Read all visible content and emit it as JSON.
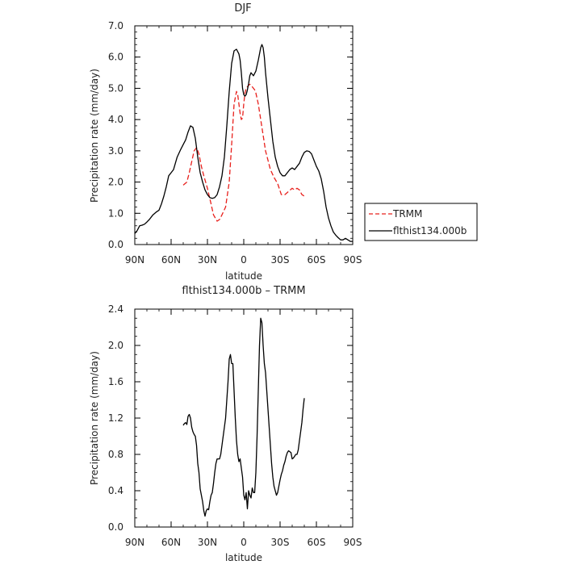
{
  "chart_data": [
    {
      "type": "line",
      "title": "DJF",
      "xlabel": "latitude",
      "ylabel": "Precipitation rate (mm/day)",
      "xlim": [
        90,
        -90
      ],
      "ylim": [
        0,
        7
      ],
      "xticks": [
        {
          "value": 90,
          "label": "90N"
        },
        {
          "value": 60,
          "label": "60N"
        },
        {
          "value": 30,
          "label": "30N"
        },
        {
          "value": 0,
          "label": "0"
        },
        {
          "value": -30,
          "label": "30S"
        },
        {
          "value": -60,
          "label": "60S"
        },
        {
          "value": -90,
          "label": "90S"
        }
      ],
      "yticks": [
        {
          "value": 0,
          "label": "0.0"
        },
        {
          "value": 1,
          "label": "1.0"
        },
        {
          "value": 2,
          "label": "2.0"
        },
        {
          "value": 3,
          "label": "3.0"
        },
        {
          "value": 4,
          "label": "4.0"
        },
        {
          "value": 5,
          "label": "5.0"
        },
        {
          "value": 6,
          "label": "6.0"
        },
        {
          "value": 7,
          "label": "7.0"
        }
      ],
      "legend_position": "right",
      "series": [
        {
          "name": "TRMM",
          "color": "#e8201c",
          "dash": "dashed",
          "x": [
            50,
            47,
            45,
            43,
            41,
            39,
            37,
            35,
            33,
            30,
            27,
            25,
            22,
            20,
            18,
            15,
            12,
            10,
            8,
            6,
            5,
            4,
            3,
            2,
            1,
            0,
            -1,
            -2,
            -3,
            -4,
            -5,
            -6,
            -7,
            -8,
            -9,
            -10,
            -12,
            -14,
            -16,
            -18,
            -20,
            -22,
            -25,
            -28,
            -31,
            -34,
            -37,
            -40,
            -42,
            -44,
            -46,
            -48,
            -50
          ],
          "y": [
            1.9,
            2.0,
            2.3,
            2.65,
            3.0,
            3.1,
            2.9,
            2.5,
            2.2,
            1.8,
            1.3,
            0.95,
            0.75,
            0.8,
            0.95,
            1.2,
            2.0,
            3.2,
            4.5,
            4.9,
            4.8,
            4.5,
            4.2,
            4.0,
            4.05,
            4.5,
            4.85,
            5.0,
            5.05,
            5.1,
            5.13,
            5.1,
            5.05,
            5.0,
            4.95,
            4.85,
            4.5,
            4.0,
            3.5,
            3.0,
            2.7,
            2.4,
            2.15,
            1.95,
            1.6,
            1.6,
            1.7,
            1.8,
            1.75,
            1.8,
            1.75,
            1.6,
            1.55
          ]
        },
        {
          "name": "flthist134.000b",
          "color": "#000000",
          "dash": "solid",
          "x": [
            90,
            88,
            86,
            84,
            82,
            80,
            78,
            75,
            72,
            70,
            68,
            66,
            64,
            62,
            60,
            58,
            55,
            52,
            50,
            48,
            46,
            44,
            42,
            40,
            38,
            36,
            34,
            32,
            30,
            28,
            26,
            24,
            22,
            20,
            18,
            16,
            14,
            12,
            10,
            8,
            6,
            4,
            3,
            2,
            1,
            0,
            -1,
            -2,
            -3,
            -4,
            -5,
            -6,
            -7,
            -8,
            -10,
            -12,
            -14,
            -15,
            -16,
            -17,
            -18,
            -20,
            -22,
            -24,
            -26,
            -28,
            -30,
            -32,
            -34,
            -36,
            -38,
            -40,
            -42,
            -44,
            -46,
            -48,
            -50,
            -52,
            -54,
            -56,
            -58,
            -60,
            -62,
            -64,
            -66,
            -68,
            -70,
            -72,
            -74,
            -76,
            -78,
            -80,
            -82,
            -84,
            -86,
            -88,
            -90
          ],
          "y": [
            0.35,
            0.45,
            0.6,
            0.62,
            0.65,
            0.72,
            0.8,
            0.95,
            1.05,
            1.1,
            1.3,
            1.55,
            1.85,
            2.2,
            2.3,
            2.4,
            2.8,
            3.05,
            3.2,
            3.35,
            3.6,
            3.8,
            3.75,
            3.4,
            2.8,
            2.3,
            2.0,
            1.75,
            1.6,
            1.5,
            1.48,
            1.5,
            1.6,
            1.85,
            2.2,
            2.8,
            3.8,
            4.9,
            5.8,
            6.2,
            6.25,
            6.1,
            5.9,
            5.5,
            5.0,
            4.8,
            4.75,
            4.8,
            4.95,
            5.15,
            5.4,
            5.5,
            5.45,
            5.4,
            5.55,
            5.9,
            6.3,
            6.4,
            6.3,
            6.0,
            5.5,
            4.7,
            4.0,
            3.3,
            2.8,
            2.5,
            2.3,
            2.2,
            2.2,
            2.3,
            2.4,
            2.45,
            2.4,
            2.5,
            2.6,
            2.8,
            2.95,
            3.0,
            2.98,
            2.9,
            2.7,
            2.5,
            2.35,
            2.1,
            1.7,
            1.2,
            0.85,
            0.6,
            0.4,
            0.3,
            0.22,
            0.15,
            0.15,
            0.2,
            0.15,
            0.1,
            0.1
          ]
        }
      ]
    },
    {
      "type": "line",
      "title": "flthist134.000b – TRMM",
      "xlabel": "latitude",
      "ylabel": "Precipitation rate (mm/day)",
      "xlim": [
        90,
        -90
      ],
      "ylim": [
        0,
        2.4
      ],
      "xticks": [
        {
          "value": 90,
          "label": "90N"
        },
        {
          "value": 60,
          "label": "60N"
        },
        {
          "value": 30,
          "label": "30N"
        },
        {
          "value": 0,
          "label": "0"
        },
        {
          "value": -30,
          "label": "30S"
        },
        {
          "value": -60,
          "label": "60S"
        },
        {
          "value": -90,
          "label": "90S"
        }
      ],
      "yticks": [
        {
          "value": 0,
          "label": "0.0"
        },
        {
          "value": 0.4,
          "label": "0.4"
        },
        {
          "value": 0.8,
          "label": "0.8"
        },
        {
          "value": 1.2,
          "label": "1.2"
        },
        {
          "value": 1.6,
          "label": "1.6"
        },
        {
          "value": 2.0,
          "label": "2.0"
        },
        {
          "value": 2.4,
          "label": "2.4"
        }
      ],
      "series": [
        {
          "color": "#000000",
          "dash": "solid",
          "x": [
            50,
            49,
            48,
            47,
            46,
            45,
            44,
            43,
            42,
            41,
            40,
            39,
            38,
            37,
            36,
            35,
            34,
            33,
            32,
            31,
            30,
            29,
            28,
            27,
            26,
            25,
            24,
            23,
            22,
            21,
            20,
            19,
            18,
            17,
            16,
            15,
            14,
            13,
            12,
            11,
            10,
            9,
            8,
            7,
            6,
            5,
            4,
            3,
            2,
            1,
            0,
            -1,
            -2,
            -3,
            -4,
            -5,
            -6,
            -7,
            -8,
            -9,
            -10,
            -11,
            -12,
            -13,
            -14,
            -15,
            -16,
            -17,
            -18,
            -19,
            -20,
            -21,
            -22,
            -23,
            -24,
            -25,
            -26,
            -27,
            -28,
            -29,
            -30,
            -31,
            -32,
            -33,
            -34,
            -35,
            -36,
            -37,
            -38,
            -39,
            -40,
            -41,
            -42,
            -43,
            -44,
            -45,
            -46,
            -47,
            -48,
            -49,
            -50
          ],
          "y": [
            1.12,
            1.14,
            1.15,
            1.13,
            1.22,
            1.24,
            1.2,
            1.1,
            1.05,
            1.02,
            1.0,
            0.9,
            0.7,
            0.6,
            0.42,
            0.35,
            0.28,
            0.18,
            0.12,
            0.18,
            0.2,
            0.19,
            0.28,
            0.35,
            0.38,
            0.48,
            0.6,
            0.7,
            0.75,
            0.75,
            0.75,
            0.8,
            0.9,
            1.0,
            1.1,
            1.2,
            1.4,
            1.6,
            1.85,
            1.9,
            1.8,
            1.8,
            1.5,
            1.2,
            0.95,
            0.8,
            0.72,
            0.75,
            0.65,
            0.55,
            0.35,
            0.3,
            0.38,
            0.2,
            0.4,
            0.35,
            0.32,
            0.43,
            0.38,
            0.38,
            0.6,
            1.0,
            1.5,
            2.0,
            2.3,
            2.25,
            2.0,
            1.8,
            1.7,
            1.5,
            1.3,
            1.1,
            0.9,
            0.7,
            0.55,
            0.45,
            0.4,
            0.35,
            0.38,
            0.45,
            0.52,
            0.58,
            0.62,
            0.68,
            0.72,
            0.78,
            0.82,
            0.84,
            0.83,
            0.82,
            0.75,
            0.76,
            0.78,
            0.8,
            0.8,
            0.85,
            0.95,
            1.05,
            1.15,
            1.3,
            1.42
          ]
        }
      ]
    }
  ]
}
